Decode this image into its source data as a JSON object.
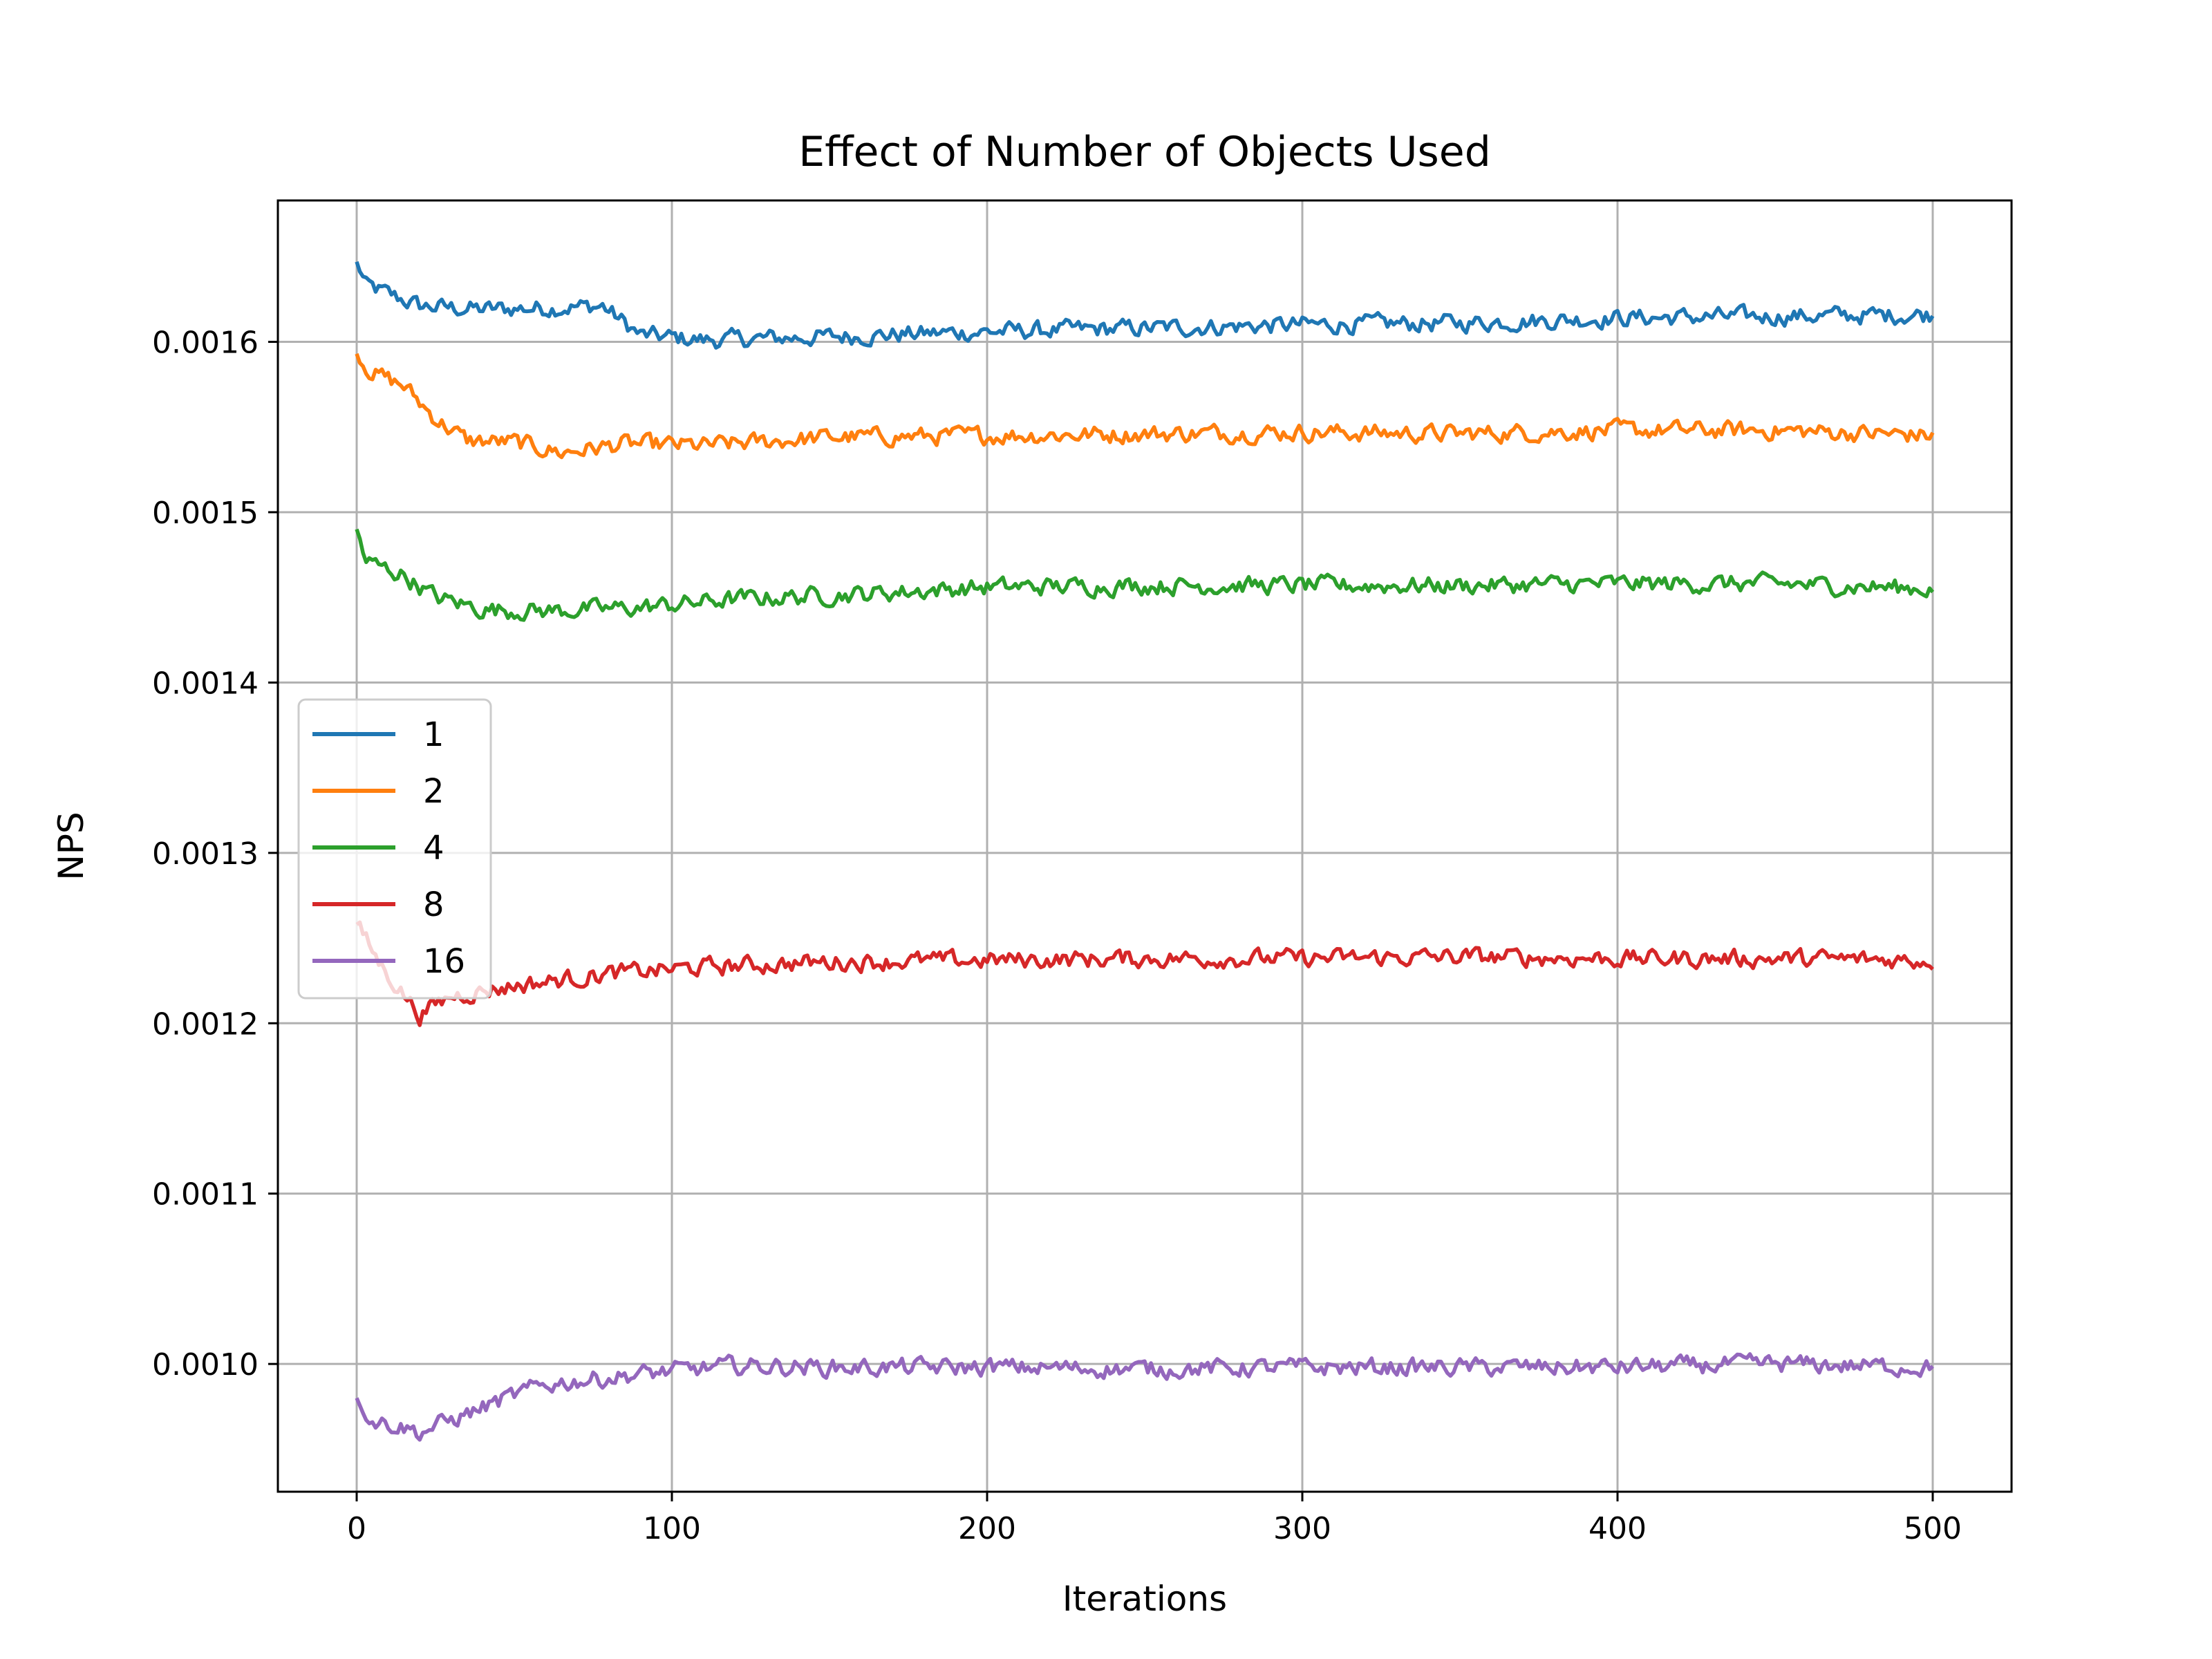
{
  "chart_data": {
    "type": "line",
    "title": "Effect of Number of Objects Used",
    "xlabel": "Iterations",
    "ylabel": "NPS",
    "xlim": [
      -25,
      525
    ],
    "ylim": [
      0.000925,
      0.001683
    ],
    "xticks": [
      0,
      100,
      200,
      300,
      400,
      500
    ],
    "yticks": [
      0.001,
      0.0011,
      0.0012,
      0.0013,
      0.0014,
      0.0015,
      0.0016
    ],
    "xtick_labels": [
      "0",
      "100",
      "200",
      "300",
      "400",
      "500"
    ],
    "ytick_labels": [
      "0.0010",
      "0.0011",
      "0.0012",
      "0.0013",
      "0.0014",
      "0.0015",
      "0.0016"
    ],
    "grid": true,
    "legend_position": "center-left",
    "noise_note": "series are noisy; key points below, rendered with small jitter",
    "series": [
      {
        "name": "1",
        "color": "#1f77b4",
        "noise": 4.5e-06,
        "points": [
          [
            0,
            0.001647
          ],
          [
            3,
            0.001633
          ],
          [
            10,
            0.001628
          ],
          [
            20,
            0.001621
          ],
          [
            40,
            0.001619
          ],
          [
            60,
            0.00162
          ],
          [
            78,
            0.001621
          ],
          [
            90,
            0.001604
          ],
          [
            110,
            0.001601
          ],
          [
            150,
            0.001603
          ],
          [
            200,
            0.001606
          ],
          [
            250,
            0.001608
          ],
          [
            300,
            0.00161
          ],
          [
            350,
            0.001611
          ],
          [
            400,
            0.001614
          ],
          [
            450,
            0.001615
          ],
          [
            500,
            0.001616
          ]
        ]
      },
      {
        "name": "2",
        "color": "#ff7f0e",
        "noise": 4.5e-06,
        "points": [
          [
            0,
            0.001593
          ],
          [
            5,
            0.001582
          ],
          [
            15,
            0.001574
          ],
          [
            25,
            0.001555
          ],
          [
            35,
            0.001542
          ],
          [
            50,
            0.001541
          ],
          [
            65,
            0.001535
          ],
          [
            85,
            0.00154
          ],
          [
            110,
            0.001539
          ],
          [
            150,
            0.001544
          ],
          [
            200,
            0.001545
          ],
          [
            250,
            0.001546
          ],
          [
            300,
            0.001547
          ],
          [
            350,
            0.001546
          ],
          [
            400,
            0.001548
          ],
          [
            450,
            0.001548
          ],
          [
            500,
            0.001545
          ]
        ]
      },
      {
        "name": "4",
        "color": "#2ca02c",
        "noise": 4.5e-06,
        "points": [
          [
            0,
            0.00149
          ],
          [
            3,
            0.001471
          ],
          [
            15,
            0.001463
          ],
          [
            25,
            0.00145
          ],
          [
            40,
            0.001443
          ],
          [
            60,
            0.001442
          ],
          [
            90,
            0.001444
          ],
          [
            120,
            0.001449
          ],
          [
            160,
            0.001452
          ],
          [
            200,
            0.001456
          ],
          [
            250,
            0.001457
          ],
          [
            300,
            0.001457
          ],
          [
            350,
            0.001457
          ],
          [
            400,
            0.001458
          ],
          [
            450,
            0.001458
          ],
          [
            500,
            0.001455
          ]
        ]
      },
      {
        "name": "8",
        "color": "#d62728",
        "noise": 4.5e-06,
        "points": [
          [
            0,
            0.001258
          ],
          [
            8,
            0.001233
          ],
          [
            15,
            0.001217
          ],
          [
            20,
            0.001205
          ],
          [
            30,
            0.001216
          ],
          [
            50,
            0.001222
          ],
          [
            80,
            0.001229
          ],
          [
            110,
            0.001233
          ],
          [
            150,
            0.001236
          ],
          [
            200,
            0.001237
          ],
          [
            250,
            0.001238
          ],
          [
            300,
            0.001238
          ],
          [
            350,
            0.001239
          ],
          [
            400,
            0.001238
          ],
          [
            450,
            0.001238
          ],
          [
            500,
            0.001237
          ]
        ]
      },
      {
        "name": "16",
        "color": "#9467bd",
        "noise": 4.5e-06,
        "points": [
          [
            0,
            0.00098
          ],
          [
            5,
            0.000967
          ],
          [
            15,
            0.000963
          ],
          [
            20,
            0.00096
          ],
          [
            30,
            0.000967
          ],
          [
            45,
            0.000978
          ],
          [
            60,
            0.000988
          ],
          [
            90,
            0.000994
          ],
          [
            120,
            0.000999
          ],
          [
            150,
            0.000998
          ],
          [
            200,
            0.000998
          ],
          [
            250,
            0.000997
          ],
          [
            300,
            0.000998
          ],
          [
            350,
            0.000998
          ],
          [
            400,
            0.000998
          ],
          [
            450,
            0.001
          ],
          [
            500,
            0.000998
          ]
        ]
      }
    ]
  }
}
